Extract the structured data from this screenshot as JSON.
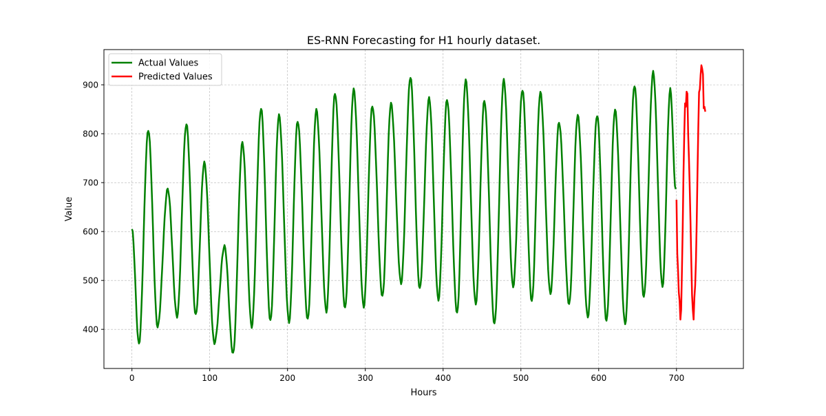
{
  "chart_data": {
    "type": "line",
    "title": "ES-RNN Forecasting for H1 hourly dataset.",
    "xlabel": "Hours",
    "ylabel": "Value",
    "xlim": [
      -36,
      786
    ],
    "ylim": [
      320,
      972
    ],
    "x_ticks": [
      0,
      100,
      200,
      300,
      400,
      500,
      600,
      700
    ],
    "y_ticks": [
      400,
      500,
      600,
      700,
      800,
      900
    ],
    "grid": true,
    "legend_position": "upper-left",
    "series": [
      {
        "name": "Actual Values",
        "color": "#008000",
        "start_x": 0,
        "step": 1,
        "peak_x": [
          21,
          46,
          70,
          93,
          119,
          142,
          166,
          189,
          213,
          237,
          261,
          285,
          309,
          333,
          358,
          382,
          405,
          429,
          453,
          478,
          502,
          525,
          549,
          573,
          598,
          621,
          646,
          670,
          692
        ],
        "peak_y": [
          808,
          687,
          820,
          741,
          570,
          782,
          852,
          838,
          826,
          849,
          883,
          891,
          857,
          862,
          916,
          873,
          870,
          910,
          868,
          910,
          890,
          885,
          823,
          838,
          838,
          849,
          899,
          926,
          891
        ],
        "trough_x": [
          9,
          33,
          58,
          82,
          106,
          130,
          154,
          178,
          202,
          226,
          250,
          274,
          298,
          322,
          346,
          370,
          394,
          418,
          442,
          466,
          490,
          514,
          538,
          562,
          586,
          610,
          634,
          658,
          682
        ],
        "trough_y": [
          370,
          405,
          426,
          429,
          372,
          350,
          405,
          417,
          415,
          420,
          436,
          443,
          446,
          467,
          494,
          483,
          460,
          433,
          452,
          411,
          487,
          457,
          473,
          451,
          425,
          417,
          411,
          466,
          487
        ],
        "end_y": 685,
        "n_points": 700
      },
      {
        "name": "Predicted Values",
        "color": "#ff0000",
        "start_x": 700,
        "step": 1,
        "values": [
          665,
          555,
          520,
          475,
          458,
          420,
          440,
          520,
          610,
          720,
          800,
          862,
          855,
          886,
          882,
          800,
          750,
          690,
          620,
          540,
          470,
          440,
          420,
          465,
          490,
          540,
          620,
          720,
          810,
          885,
          891,
          920,
          940,
          933,
          922,
          852,
          855,
          845
        ]
      }
    ]
  }
}
